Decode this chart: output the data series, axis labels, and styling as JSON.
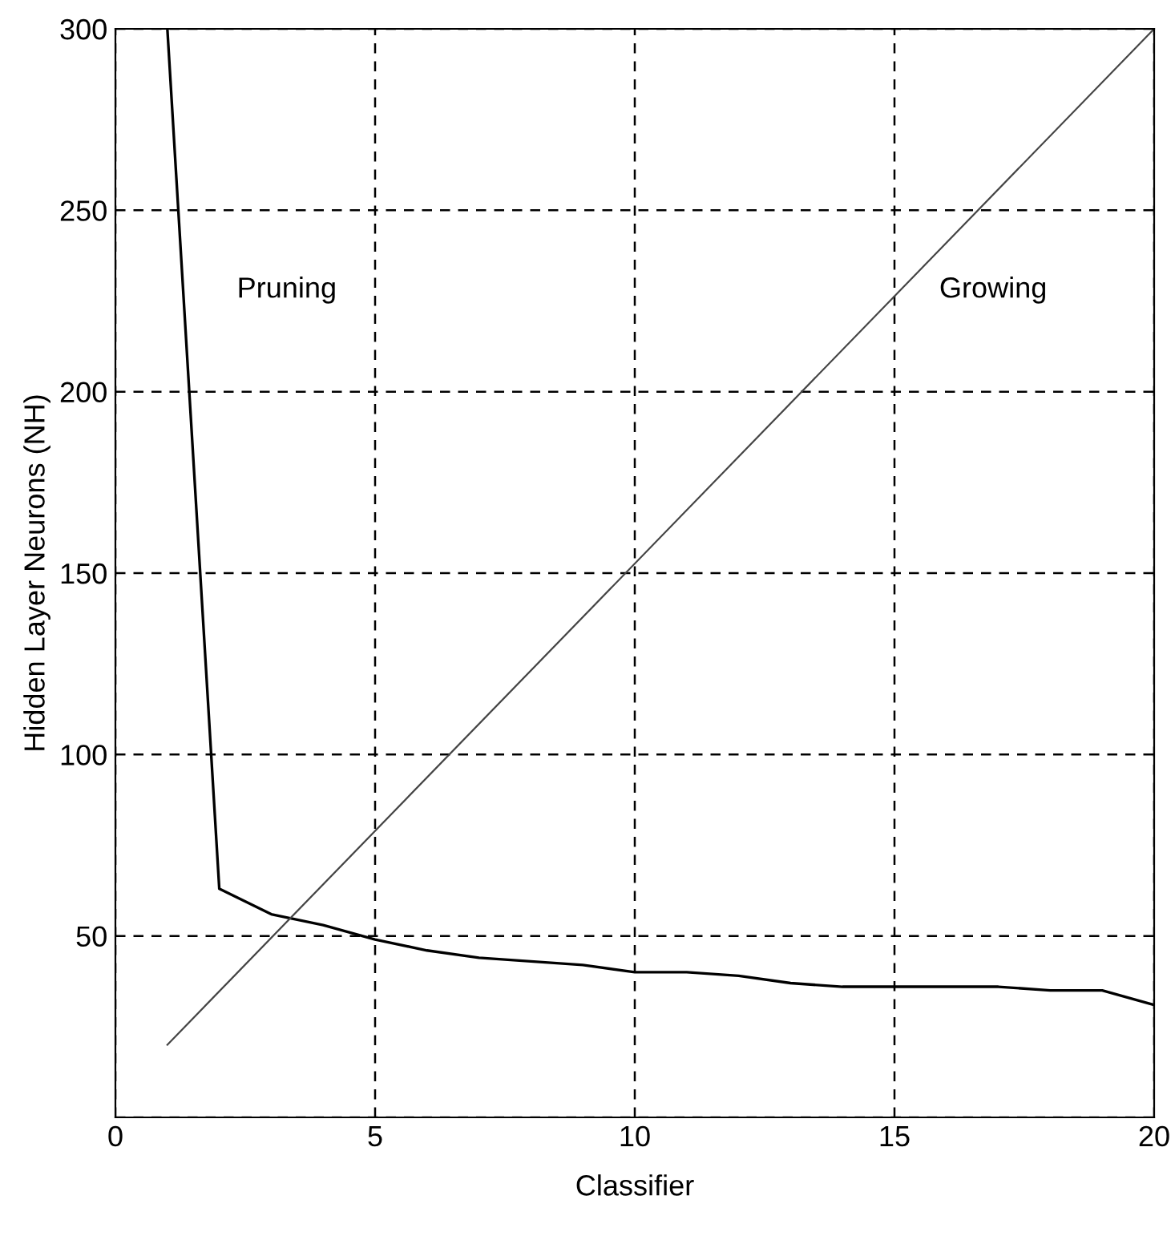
{
  "chart_data": {
    "type": "line",
    "xlabel": "Classifier",
    "ylabel": "Hidden Layer Neurons (NH)",
    "xlim": [
      0,
      20
    ],
    "ylim": [
      0,
      300
    ],
    "xticks": [
      0,
      5,
      10,
      15,
      20
    ],
    "yticks": [
      {
        "value": 0,
        "label": null
      },
      50,
      100,
      150,
      200,
      250,
      300
    ],
    "grid": true,
    "legend": false,
    "marker": "none",
    "line_style": "solid",
    "series": [
      {
        "color": "#000000",
        "x": [
          1,
          2,
          3,
          4,
          5,
          6,
          7,
          8,
          9,
          10,
          11,
          12,
          13,
          14,
          15,
          16,
          17,
          18,
          19,
          20
        ],
        "values": [
          300,
          63,
          56,
          53,
          49,
          46,
          44,
          43,
          42,
          40,
          40,
          39,
          37,
          36,
          36,
          36,
          36,
          35,
          35,
          31
        ]
      },
      {
        "color": "#444444",
        "x": [
          1,
          20
        ],
        "values": [
          20,
          300
        ]
      }
    ],
    "annotations": [
      "Pruning",
      "Growing"
    ]
  }
}
